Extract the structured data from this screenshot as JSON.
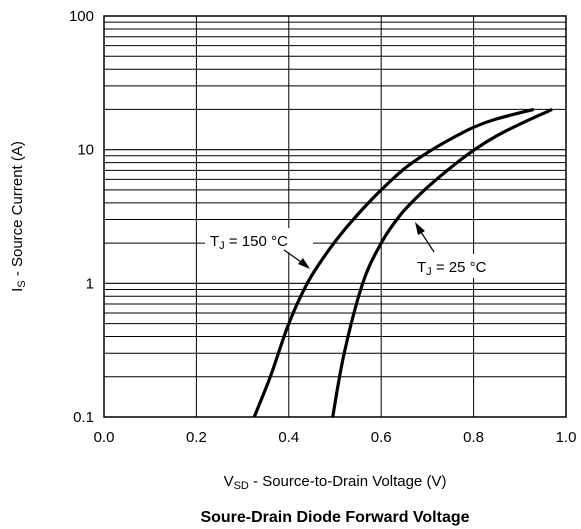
{
  "chart_data": {
    "type": "line",
    "title": "Soure-Drain Diode Forward Voltage",
    "xlabel": {
      "main": "V",
      "sub": "SD",
      "rest": " - Source-to-Drain Voltage (V)"
    },
    "ylabel": {
      "main": "I",
      "sub": "S",
      "rest": " - Source Current (A)"
    },
    "xlim": [
      0.0,
      1.0
    ],
    "ylim": [
      0.1,
      100
    ],
    "yscale": "log",
    "grid": true,
    "x_ticks": [
      "0.0",
      "0.2",
      "0.4",
      "0.6",
      "0.8",
      "1.0"
    ],
    "y_ticks": [
      "0.1",
      "1",
      "10",
      "100"
    ],
    "series": [
      {
        "name": "TJ = 150 °C",
        "label": {
          "main": "T",
          "sub": "J",
          "rest": " = 150 °C"
        },
        "x": [
          0.325,
          0.36,
          0.4,
          0.44,
          0.48,
          0.52,
          0.56,
          0.6,
          0.65,
          0.7,
          0.75,
          0.8,
          0.85,
          0.93
        ],
        "y": [
          0.1,
          0.2,
          0.5,
          1.0,
          1.65,
          2.5,
          3.6,
          5.0,
          7.2,
          9.5,
          12.0,
          14.7,
          17.0,
          20.0
        ]
      },
      {
        "name": "TJ = 25 °C",
        "label": {
          "main": "T",
          "sub": "J",
          "rest": " = 25 °C"
        },
        "x": [
          0.495,
          0.52,
          0.56,
          0.6,
          0.64,
          0.68,
          0.72,
          0.76,
          0.8,
          0.85,
          0.9,
          0.97
        ],
        "y": [
          0.1,
          0.3,
          1.0,
          2.0,
          3.2,
          4.5,
          6.0,
          7.8,
          9.9,
          12.7,
          15.5,
          20.0
        ]
      }
    ]
  }
}
